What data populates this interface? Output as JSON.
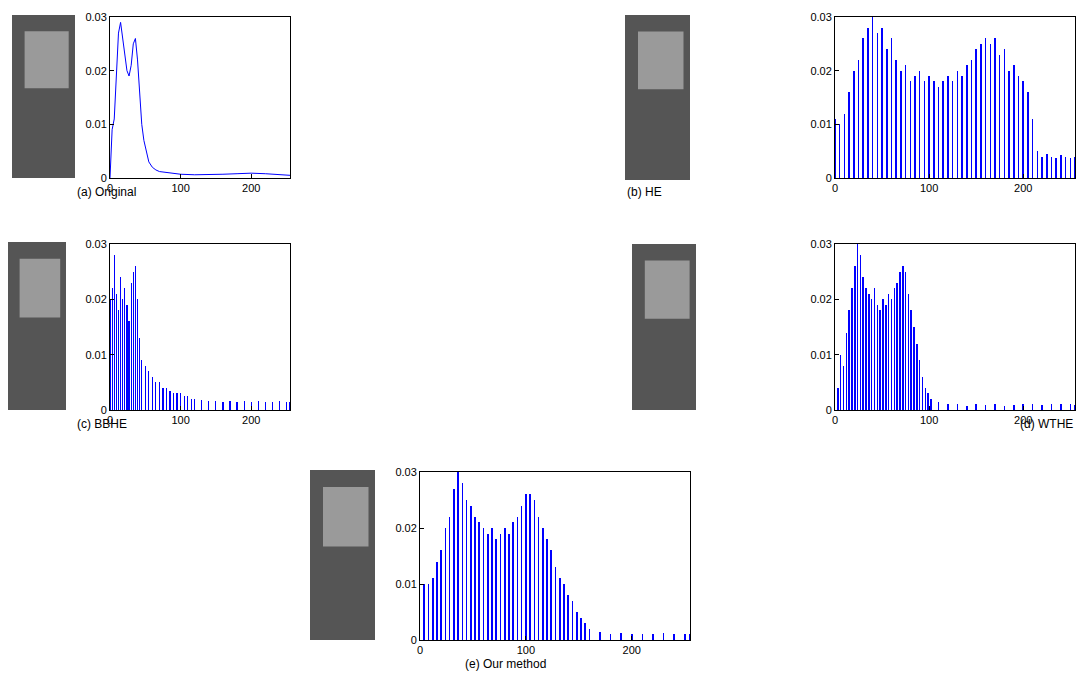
{
  "chart_data": [
    {
      "type": "line",
      "title": "(a) Original",
      "color": "#0000ff",
      "x": [
        0,
        3,
        6,
        9,
        12,
        15,
        18,
        21,
        24,
        27,
        30,
        33,
        36,
        39,
        42,
        45,
        48,
        51,
        55,
        60,
        65,
        70,
        80,
        90,
        100,
        120,
        140,
        160,
        180,
        200,
        220,
        240,
        255
      ],
      "values": [
        0,
        0.009,
        0.011,
        0.018,
        0.027,
        0.029,
        0.026,
        0.022,
        0.02,
        0.019,
        0.021,
        0.025,
        0.026,
        0.022,
        0.015,
        0.01,
        0.007,
        0.005,
        0.003,
        0.002,
        0.0015,
        0.0012,
        0.001,
        0.0008,
        0.0007,
        0.0006,
        0.0006,
        0.0007,
        0.0008,
        0.0009,
        0.0008,
        0.0006,
        0.0005
      ],
      "xlim": [
        0,
        255
      ],
      "ylim": [
        0,
        0.03
      ],
      "xticks": [
        0,
        100,
        200
      ],
      "yticks": [
        0,
        0.01,
        0.02,
        0.03
      ]
    },
    {
      "type": "bar",
      "title": "(b) HE",
      "color": "#0000ff",
      "x": [
        0,
        5,
        10,
        15,
        20,
        25,
        30,
        35,
        40,
        45,
        50,
        55,
        60,
        65,
        70,
        75,
        80,
        85,
        90,
        95,
        100,
        105,
        110,
        115,
        120,
        125,
        130,
        135,
        140,
        145,
        150,
        155,
        160,
        165,
        170,
        175,
        180,
        185,
        190,
        195,
        200,
        205,
        210,
        215,
        220,
        225,
        230,
        235,
        240,
        245,
        250,
        255
      ],
      "values": [
        0.011,
        0.01,
        0.012,
        0.016,
        0.02,
        0.022,
        0.026,
        0.028,
        0.03,
        0.027,
        0.028,
        0.024,
        0.026,
        0.022,
        0.02,
        0.021,
        0.018,
        0.019,
        0.02,
        0.018,
        0.019,
        0.018,
        0.017,
        0.018,
        0.019,
        0.018,
        0.02,
        0.019,
        0.021,
        0.022,
        0.024,
        0.025,
        0.026,
        0.025,
        0.026,
        0.023,
        0.024,
        0.02,
        0.021,
        0.019,
        0.018,
        0.016,
        0.011,
        0.005,
        0.004,
        0.0045,
        0.004,
        0.0038,
        0.0042,
        0.004,
        0.0037,
        0.004
      ],
      "xlim": [
        0,
        255
      ],
      "ylim": [
        0,
        0.03
      ],
      "xticks": [
        0,
        100,
        200
      ],
      "yticks": [
        0,
        0.01,
        0.02,
        0.03
      ]
    },
    {
      "type": "bar",
      "title": "(c) BBHE",
      "color": "#0000ff",
      "x": [
        0,
        3,
        6,
        9,
        12,
        15,
        18,
        21,
        24,
        27,
        30,
        33,
        36,
        39,
        42,
        45,
        50,
        55,
        60,
        65,
        70,
        75,
        80,
        85,
        90,
        95,
        100,
        105,
        110,
        115,
        120,
        130,
        140,
        150,
        160,
        170,
        180,
        190,
        200,
        210,
        220,
        230,
        240,
        250,
        255
      ],
      "values": [
        0.02,
        0.022,
        0.028,
        0.021,
        0.018,
        0.024,
        0.02,
        0.022,
        0.019,
        0.016,
        0.023,
        0.025,
        0.026,
        0.02,
        0.013,
        0.009,
        0.008,
        0.007,
        0.006,
        0.005,
        0.005,
        0.004,
        0.004,
        0.0035,
        0.003,
        0.003,
        0.003,
        0.0025,
        0.0025,
        0.002,
        0.002,
        0.0018,
        0.0017,
        0.0016,
        0.0015,
        0.0016,
        0.0015,
        0.0017,
        0.0015,
        0.0016,
        0.0015,
        0.0014,
        0.0016,
        0.0015,
        0.0014
      ],
      "xlim": [
        0,
        255
      ],
      "ylim": [
        0,
        0.03
      ],
      "xticks": [
        0,
        100,
        200
      ],
      "yticks": [
        0,
        0.01,
        0.02,
        0.03
      ]
    },
    {
      "type": "bar",
      "title": "(d) WTHE",
      "color": "#0000ff",
      "x": [
        3,
        6,
        9,
        12,
        15,
        18,
        21,
        24,
        27,
        30,
        33,
        36,
        39,
        42,
        45,
        48,
        51,
        54,
        57,
        60,
        63,
        66,
        69,
        72,
        75,
        78,
        81,
        84,
        87,
        90,
        93,
        96,
        99,
        102,
        110,
        120,
        130,
        140,
        150,
        160,
        170,
        180,
        190,
        200,
        210,
        220,
        230,
        240,
        250,
        255
      ],
      "values": [
        0.004,
        0.01,
        0.008,
        0.014,
        0.018,
        0.022,
        0.026,
        0.03,
        0.028,
        0.024,
        0.022,
        0.021,
        0.02,
        0.022,
        0.019,
        0.018,
        0.02,
        0.019,
        0.021,
        0.02,
        0.022,
        0.023,
        0.025,
        0.026,
        0.025,
        0.021,
        0.018,
        0.015,
        0.012,
        0.009,
        0.006,
        0.004,
        0.003,
        0.002,
        0.0015,
        0.001,
        0.001,
        0.0008,
        0.001,
        0.0009,
        0.001,
        0.0008,
        0.0009,
        0.001,
        0.001,
        0.0009,
        0.001,
        0.0011,
        0.001,
        0.0009
      ],
      "xlim": [
        0,
        255
      ],
      "ylim": [
        0,
        0.03
      ],
      "xticks": [
        0,
        100,
        200
      ],
      "yticks": [
        0,
        0.01,
        0.02,
        0.03
      ]
    },
    {
      "type": "bar",
      "title": "(e) Our method",
      "color": "#0000ff",
      "x": [
        4,
        8,
        12,
        16,
        20,
        24,
        28,
        32,
        36,
        40,
        44,
        48,
        52,
        56,
        60,
        64,
        68,
        72,
        76,
        80,
        84,
        88,
        92,
        96,
        100,
        104,
        108,
        112,
        116,
        120,
        124,
        128,
        132,
        136,
        140,
        144,
        148,
        152,
        156,
        160,
        170,
        180,
        190,
        200,
        210,
        220,
        230,
        240,
        250,
        255
      ],
      "values": [
        0.01,
        0.01,
        0.011,
        0.014,
        0.016,
        0.02,
        0.022,
        0.027,
        0.03,
        0.028,
        0.025,
        0.024,
        0.022,
        0.021,
        0.02,
        0.019,
        0.02,
        0.018,
        0.019,
        0.02,
        0.019,
        0.021,
        0.022,
        0.024,
        0.026,
        0.026,
        0.025,
        0.022,
        0.02,
        0.018,
        0.016,
        0.013,
        0.011,
        0.01,
        0.008,
        0.007,
        0.005,
        0.004,
        0.003,
        0.002,
        0.0015,
        0.001,
        0.0012,
        0.001,
        0.0011,
        0.001,
        0.0012,
        0.001,
        0.001,
        0.0011
      ],
      "xlim": [
        0,
        255
      ],
      "ylim": [
        0,
        0.03
      ],
      "xticks": [
        0,
        100,
        200
      ],
      "yticks": [
        0,
        0.01,
        0.02,
        0.03
      ]
    }
  ]
}
